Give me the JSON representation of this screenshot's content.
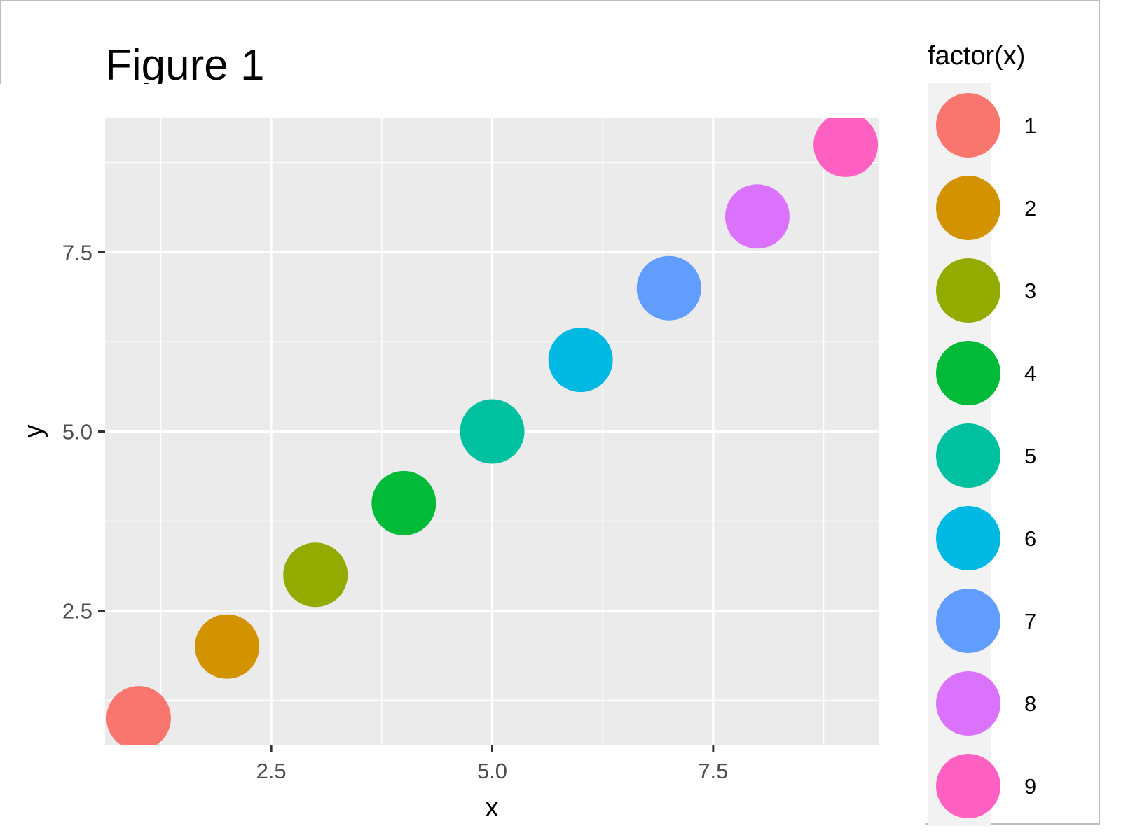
{
  "chart_data": {
    "type": "scatter",
    "title": "Figure 1",
    "xlabel": "x",
    "ylabel": "y",
    "xlim": [
      0.62,
      9.38
    ],
    "ylim": [
      0.62,
      9.38
    ],
    "x_ticks": [
      2.5,
      5.0,
      7.5
    ],
    "y_ticks": [
      2.5,
      5.0,
      7.5
    ],
    "x_tick_labels": [
      "2.5",
      "5.0",
      "7.5"
    ],
    "y_tick_labels": [
      "2.5",
      "5.0",
      "7.5"
    ],
    "grid": true,
    "panel_background": "#ebebeb",
    "legend": {
      "title": "factor(x)",
      "position": "right",
      "entries": [
        "1",
        "2",
        "3",
        "4",
        "5",
        "6",
        "7",
        "8",
        "9"
      ]
    },
    "points": [
      {
        "x": 1,
        "y": 1,
        "group": "1",
        "color": "#F8766D"
      },
      {
        "x": 2,
        "y": 2,
        "group": "2",
        "color": "#D39200"
      },
      {
        "x": 3,
        "y": 3,
        "group": "3",
        "color": "#93AA00"
      },
      {
        "x": 4,
        "y": 4,
        "group": "4",
        "color": "#00BA38"
      },
      {
        "x": 5,
        "y": 5,
        "group": "5",
        "color": "#00C19F"
      },
      {
        "x": 6,
        "y": 6,
        "group": "6",
        "color": "#00B9E3"
      },
      {
        "x": 7,
        "y": 7,
        "group": "7",
        "color": "#619CFF"
      },
      {
        "x": 8,
        "y": 8,
        "group": "8",
        "color": "#DB72FB"
      },
      {
        "x": 9,
        "y": 9,
        "group": "9",
        "color": "#FF61C3"
      }
    ]
  }
}
